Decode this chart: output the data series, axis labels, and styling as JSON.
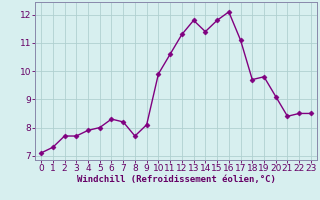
{
  "x": [
    0,
    1,
    2,
    3,
    4,
    5,
    6,
    7,
    8,
    9,
    10,
    11,
    12,
    13,
    14,
    15,
    16,
    17,
    18,
    19,
    20,
    21,
    22,
    23
  ],
  "y": [
    7.1,
    7.3,
    7.7,
    7.7,
    7.9,
    8.0,
    8.3,
    8.2,
    7.7,
    8.1,
    9.9,
    10.6,
    11.3,
    11.8,
    11.4,
    11.8,
    12.1,
    11.1,
    9.7,
    9.8,
    9.1,
    8.4,
    8.5,
    8.5
  ],
  "line_color": "#800080",
  "marker": "D",
  "marker_size": 2.5,
  "linewidth": 1.0,
  "xlabel": "Windchill (Refroidissement éolien,°C)",
  "xlim": [
    -0.5,
    23.5
  ],
  "ylim": [
    6.85,
    12.45
  ],
  "yticks": [
    7,
    8,
    9,
    10,
    11,
    12
  ],
  "xticks": [
    0,
    1,
    2,
    3,
    4,
    5,
    6,
    7,
    8,
    9,
    10,
    11,
    12,
    13,
    14,
    15,
    16,
    17,
    18,
    19,
    20,
    21,
    22,
    23
  ],
  "background_color": "#d7efef",
  "grid_color": "#b0d0d0",
  "spine_color": "#8888aa",
  "text_color": "#660066",
  "xlabel_fontsize": 6.5,
  "tick_fontsize": 6.5
}
